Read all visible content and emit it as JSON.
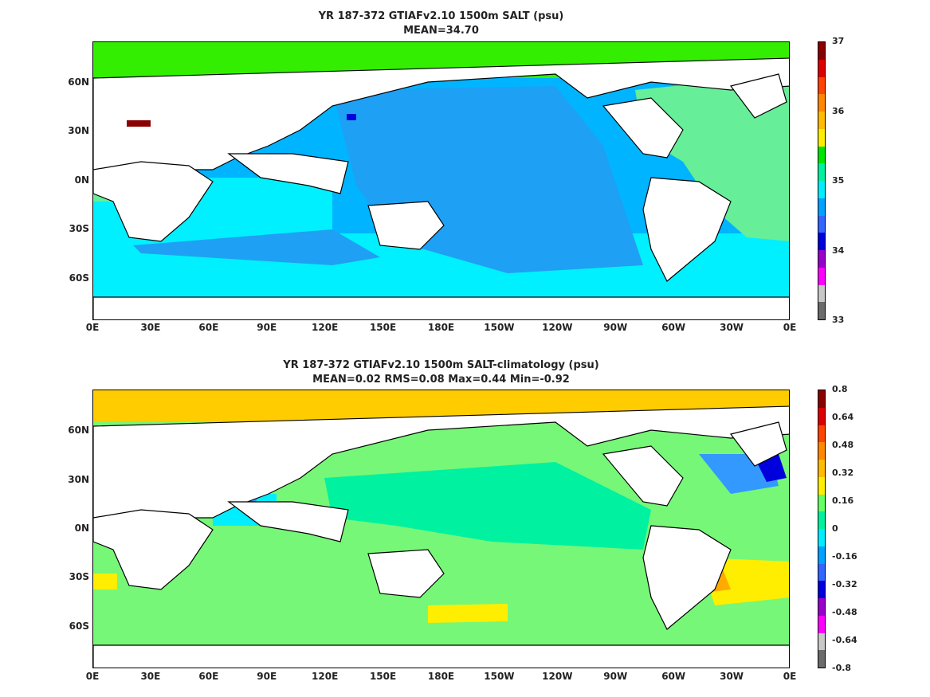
{
  "panels": [
    {
      "title_line1": "YR 187-372 GTIAFv2.10 1500m SALT (psu)",
      "title_line2": "MEAN=34.70",
      "lat_ticks": [
        "60N",
        "30N",
        "0N",
        "30S",
        "60S"
      ],
      "lon_ticks": [
        "0E",
        "30E",
        "60E",
        "90E",
        "120E",
        "150E",
        "180E",
        "150W",
        "120W",
        "90W",
        "60W",
        "30W",
        "0E"
      ],
      "colorbar_labels": [
        "37",
        "36",
        "35",
        "34",
        "33"
      ],
      "colorbar_colors": [
        "#6b6b6b",
        "#c8c8c8",
        "#ff00ff",
        "#9900cc",
        "#0000dd",
        "#3366ff",
        "#00a2ff",
        "#00eeff",
        "#00f2a0",
        "#00e600",
        "#ffee00",
        "#ffbb00",
        "#ff8800",
        "#ff4400",
        "#dd0000",
        "#8b0000"
      ],
      "field_colors": {
        "ocean_main": "#00b4ff",
        "ocean_pacific": "#1ea0f5",
        "southern": "#00f0ff",
        "atlantic": "#66ee99",
        "arctic": "#33ee00",
        "land": "#ffffff",
        "med": "#8b0000"
      }
    },
    {
      "title_line1": "YR 187-372 GTIAFv2.10 1500m SALT-climatology (psu)",
      "title_line2": "MEAN=0.02   RMS=0.08   Max=0.44   Min=-0.92",
      "lat_ticks": [
        "60N",
        "30N",
        "0N",
        "30S",
        "60S"
      ],
      "lon_ticks": [
        "0E",
        "30E",
        "60E",
        "90E",
        "120E",
        "150E",
        "180E",
        "150W",
        "120W",
        "90W",
        "60W",
        "30W",
        "0E"
      ],
      "colorbar_labels": [
        "0.8",
        "0.64",
        "0.48",
        "0.32",
        "0.16",
        "0",
        "-0.16",
        "-0.32",
        "-0.48",
        "-0.64",
        "-0.8"
      ],
      "colorbar_colors": [
        "#6b6b6b",
        "#c8c8c8",
        "#ff00ff",
        "#9900cc",
        "#0000dd",
        "#3366ff",
        "#00a2ff",
        "#00eeff",
        "#00f2a0",
        "#66ff66",
        "#ffee00",
        "#ffbb00",
        "#ff8800",
        "#ff4400",
        "#dd0000",
        "#8b0000"
      ],
      "field_colors": {
        "base": "#77f777",
        "green2": "#00f2a0",
        "cyan": "#00eeff",
        "blue": "#3399ff",
        "yellow": "#ffee00",
        "orange": "#ffaa00",
        "land": "#ffffff"
      }
    }
  ]
}
